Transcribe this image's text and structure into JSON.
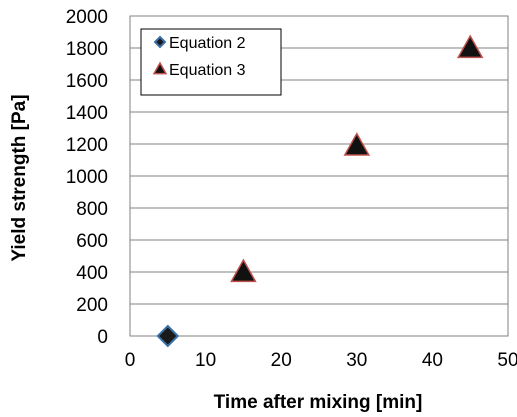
{
  "chart_data": {
    "type": "scatter",
    "title": "",
    "xlabel": "Time after mixing [min]",
    "ylabel": "Yield strength [Pa]",
    "xlim": [
      0,
      50
    ],
    "ylim": [
      0,
      2000
    ],
    "xticks": [
      0,
      10,
      20,
      30,
      40,
      50
    ],
    "yticks": [
      0,
      200,
      400,
      600,
      800,
      1000,
      1200,
      1400,
      1600,
      1800,
      2000
    ],
    "grid": "horizontal",
    "legend_position": "top-left",
    "series": [
      {
        "name": "Equation 2",
        "marker": "diamond",
        "fill": "#1a1a1a",
        "stroke": "#3a6fa8",
        "points": [
          [
            5,
            0
          ]
        ]
      },
      {
        "name": "Equation 3",
        "marker": "triangle",
        "fill": "#111111",
        "stroke": "#c0504d",
        "points": [
          [
            15,
            400
          ],
          [
            30,
            1190
          ],
          [
            45,
            1800
          ]
        ]
      }
    ]
  }
}
